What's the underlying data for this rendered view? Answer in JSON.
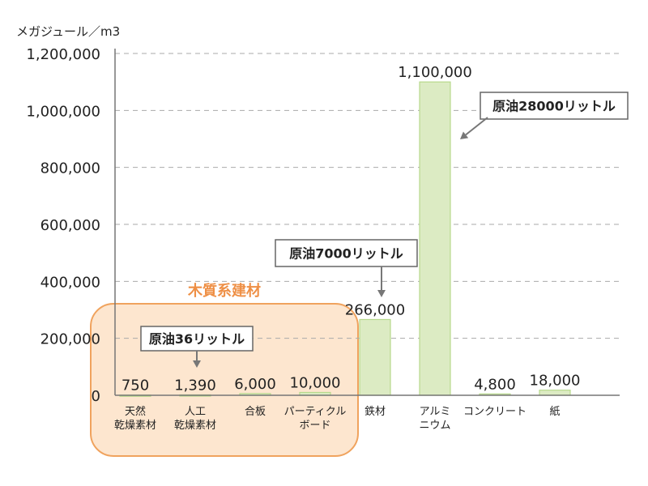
{
  "unit_label": "メガジュール／m3",
  "group_label": "木質系建材",
  "colors": {
    "bar_fill": "#dcebc3",
    "bar_stroke": "#b7d98c",
    "group_fill": "#fde6cf",
    "group_stroke": "#f0a35e",
    "grid": "#aaaaaa",
    "axis": "#777777",
    "arrow": "#777777"
  },
  "callouts": [
    {
      "text": "原油36リットル",
      "target": 1
    },
    {
      "text": "原油7000リットル",
      "target": 4
    },
    {
      "text": "原油28000リットル",
      "target": 5
    }
  ],
  "chart_data": {
    "type": "bar",
    "ylabel": "メガジュール／m3",
    "ylim": [
      0,
      1200000
    ],
    "yticks": [
      "0",
      "200,000",
      "400,000",
      "600,000",
      "800,000",
      "1,000,000",
      "1,200,000"
    ],
    "grid": true,
    "categories": [
      [
        "天然",
        "乾燥素材"
      ],
      [
        "人工",
        "乾燥素材"
      ],
      [
        "合板"
      ],
      [
        "パーティクル",
        "ボード"
      ],
      [
        "鉄材"
      ],
      [
        "アルミ",
        "ニウム"
      ],
      [
        "コンクリート"
      ],
      [
        "紙"
      ]
    ],
    "values": [
      750,
      1390,
      6000,
      10000,
      266000,
      1100000,
      4800,
      18000
    ],
    "value_labels": [
      "750",
      "1,390",
      "6,000",
      "10,000",
      "266,000",
      "1,100,000",
      "4,800",
      "18,000"
    ]
  }
}
